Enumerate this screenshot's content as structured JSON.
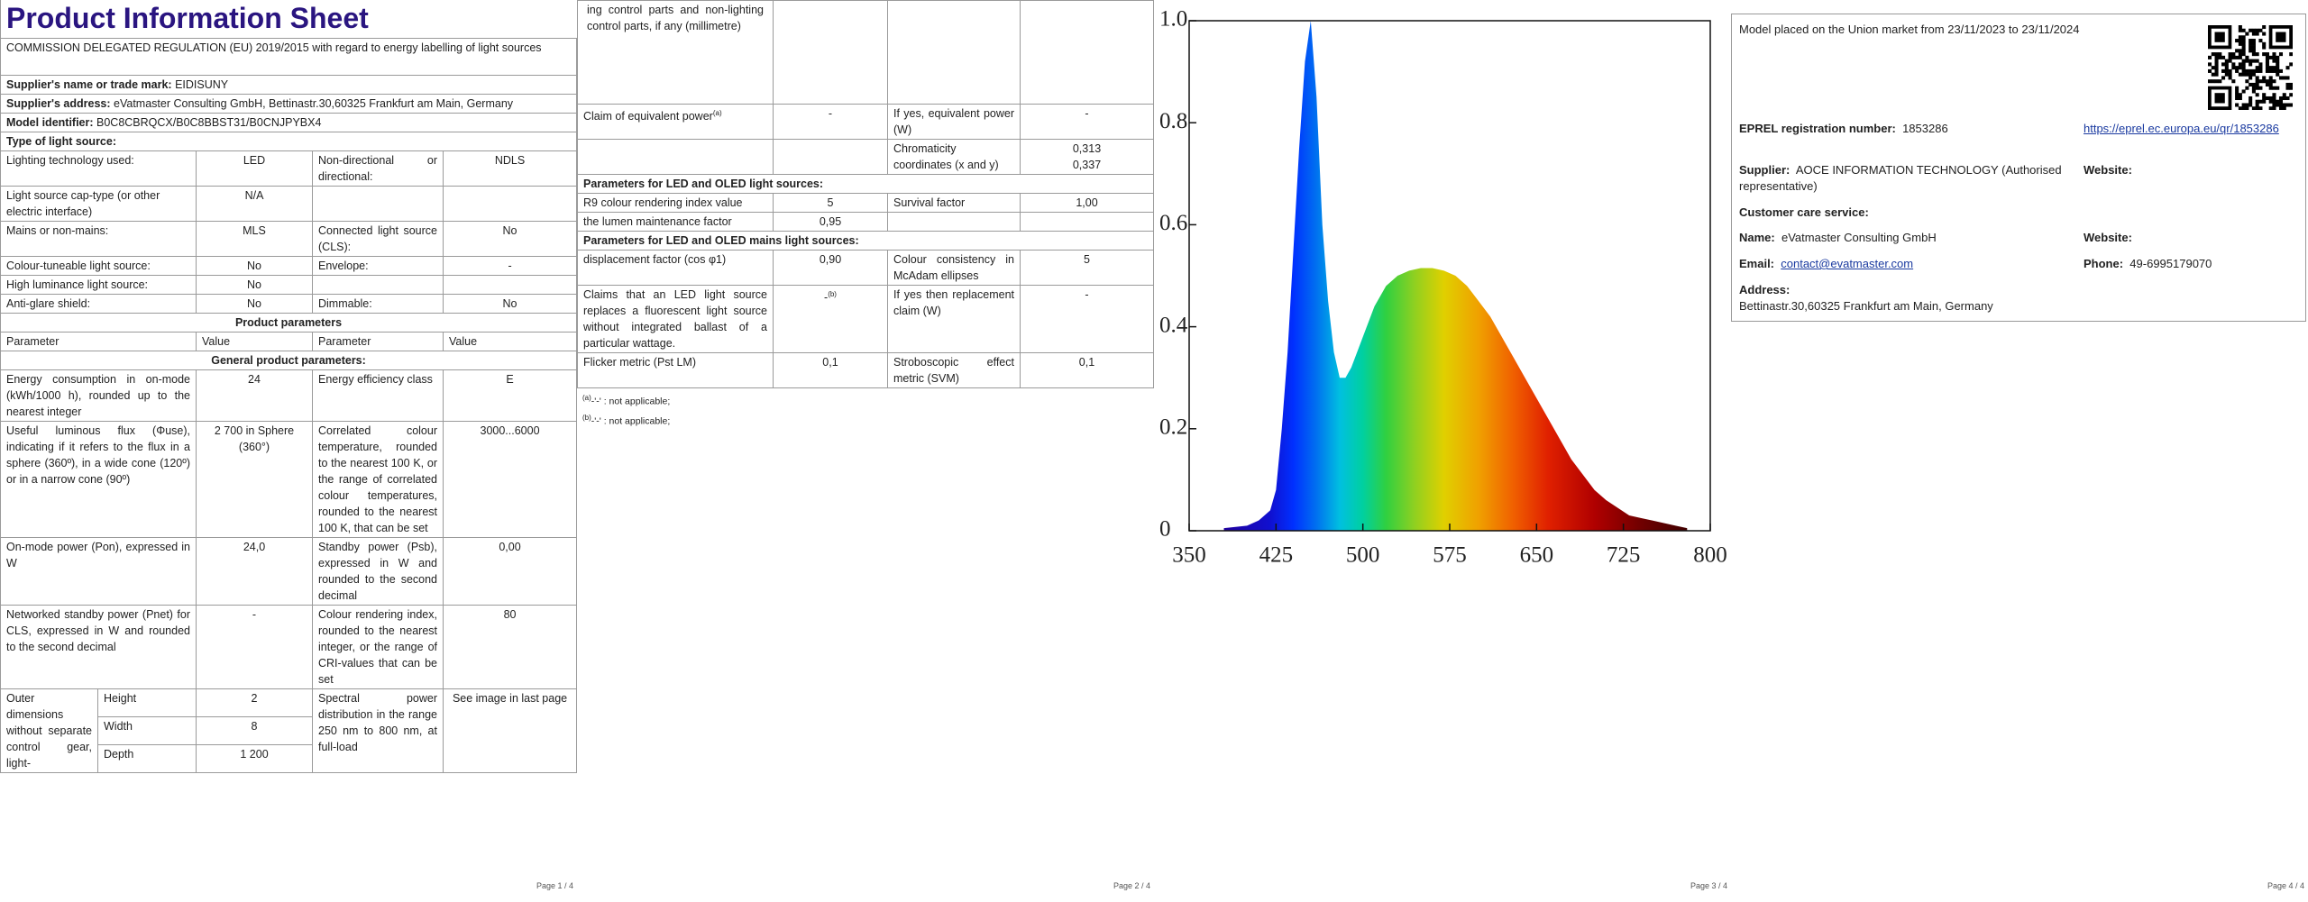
{
  "page1": {
    "title": "Product Information Sheet",
    "regulation": "COMMISSION DELEGATED REGULATION (EU) 2019/2015 with regard to energy labelling of light sources",
    "supplier_name": {
      "label": "Supplier's name or trade mark:",
      "value": "EIDISUNY"
    },
    "supplier_address": {
      "label": "Supplier's address:",
      "value": "eVatmaster Consulting GmbH, Bettinastr.30,60325 Frankfurt am Main, Germany"
    },
    "model": {
      "label": "Model identifier:",
      "value": "B0C8CBRQCX/B0C8BBST31/B0CNJPYBX4"
    },
    "type_heading": "Type of light source:",
    "type_rows": [
      [
        "Lighting technology used:",
        "LED",
        "Non-directional or directional:",
        "NDLS"
      ],
      [
        "Light source cap-type (or other electric interface)",
        "N/A"
      ],
      [
        "Mains or non-mains:",
        "MLS",
        "Connected light source (CLS):",
        "No"
      ],
      [
        "Colour-tuneable light source:",
        "No",
        "Envelope:",
        "-"
      ],
      [
        "High luminance light source:",
        "No"
      ],
      [
        "Anti-glare shield:",
        "No",
        "Dimmable:",
        "No"
      ]
    ],
    "product_parameters": "Product parameters",
    "columns": [
      "Parameter",
      "Value",
      "Parameter",
      "Value"
    ],
    "general_heading": "General product parameters:",
    "general_rows": [
      [
        "Energy consumption in on-mode (kWh/1000 h), rounded up to the nearest integer",
        "24",
        "Energy efficiency class",
        "E"
      ],
      [
        "Useful luminous flux (Φuse), indicating if it refers to the flux in a sphere (360º), in a wide cone (120º) or in a narrow cone (90º)",
        "2 700 in Sphere (360°)",
        "Correlated colour temperature, rounded to the nearest 100 K, or the range of correlated colour temperatures, rounded to the nearest 100 K, that can be set",
        "3000...6000"
      ],
      [
        "On-mode power (Pon), expressed in W",
        "24,0",
        "Standby power (Psb), expressed in W and rounded to the second decimal",
        "0,00"
      ],
      [
        "Networked standby power (Pnet) for CLS, expressed in W and rounded to the second decimal",
        "-",
        "Colour rendering index, rounded to the nearest integer, or the range of CRI-values that can be set",
        "80"
      ]
    ],
    "dimensions": {
      "label": "Outer dimensions without separate control gear, light-",
      "rows": [
        [
          "Height",
          "2"
        ],
        [
          "Width",
          "8"
        ],
        [
          "Depth",
          "1 200"
        ]
      ]
    },
    "spectral": {
      "label": "Spectral power distribution in the range 250 nm to 800 nm, at full-load",
      "value": "See image in last page"
    },
    "footer": "Page 1 / 4"
  },
  "page2": {
    "dimensions_continued": "ing control parts and non-lighting control parts, if any (millimetre)",
    "equivalent_power": {
      "label": "Claim of equivalent power",
      "ref": "(a)",
      "value": "-",
      "label2": "If yes, equivalent power (W)",
      "value2": "-"
    },
    "chromaticity": {
      "label": "Chromaticity coordinates (x and y)",
      "x": "0,313",
      "y": "0,337"
    },
    "led_heading": "Parameters for LED and OLED light sources:",
    "led_rows": [
      [
        "R9 colour rendering index value",
        "5",
        "Survival factor",
        "1,00"
      ],
      [
        "the lumen maintenance factor",
        "0,95"
      ]
    ],
    "mains_heading": "Parameters for LED and OLED mains light sources:",
    "mains_rows": [
      [
        "displacement factor (cos φ1)",
        "0,90",
        "Colour consistency in McAdam ellipses",
        "5"
      ]
    ],
    "fluorescent": {
      "label": "Claims that an LED light source replaces a fluorescent light source without integrated ballast of a particular wattage.",
      "value": "-",
      "ref": "(b)",
      "label2": "If yes then replacement claim (W)",
      "value2": "-"
    },
    "flicker": [
      "Flicker metric (Pst LM)",
      "0,1",
      "Stroboscopic effect metric (SVM)",
      "0,1"
    ],
    "notes": [
      {
        "ref": "(a)",
        "text": "-'-' : not applicable;"
      },
      {
        "ref": "(b)",
        "text": "-'-' : not applicable;"
      }
    ],
    "footer": "Page 2 / 4"
  },
  "chart_data": {
    "type": "area",
    "x": [
      380,
      400,
      410,
      420,
      425,
      430,
      435,
      440,
      445,
      450,
      455,
      460,
      465,
      470,
      475,
      480,
      485,
      490,
      500,
      510,
      520,
      530,
      540,
      550,
      560,
      570,
      580,
      590,
      600,
      610,
      620,
      630,
      640,
      650,
      660,
      670,
      680,
      690,
      700,
      710,
      720,
      730,
      740,
      750,
      760,
      770,
      780
    ],
    "values": [
      0.005,
      0.01,
      0.02,
      0.04,
      0.08,
      0.2,
      0.35,
      0.55,
      0.75,
      0.92,
      1.0,
      0.85,
      0.6,
      0.45,
      0.35,
      0.3,
      0.3,
      0.32,
      0.38,
      0.44,
      0.48,
      0.5,
      0.51,
      0.515,
      0.515,
      0.51,
      0.5,
      0.48,
      0.45,
      0.42,
      0.38,
      0.34,
      0.3,
      0.26,
      0.22,
      0.18,
      0.14,
      0.11,
      0.08,
      0.06,
      0.045,
      0.03,
      0.025,
      0.02,
      0.015,
      0.01,
      0.005
    ],
    "xlim": [
      350,
      800
    ],
    "ylim": [
      0,
      1
    ],
    "xticks": [
      350,
      425,
      500,
      575,
      650,
      725,
      800
    ],
    "yticks": [
      0,
      0.2,
      0.4,
      0.6,
      0.8,
      {
        "value": 1,
        "label": "1.0"
      }
    ]
  },
  "page3": {
    "footer": "Page 3 / 4"
  },
  "page4": {
    "placed": "Model placed on the Union market from 23/11/2023 to 23/11/2024",
    "eprel": {
      "label": "EPREL registration number:",
      "value": "1853286",
      "link": "https://eprel.ec.europa.eu/qr/1853286"
    },
    "supplier": {
      "label": "Supplier:",
      "value": "AOCE INFORMATION TECHNOLOGY (Authorised representative)",
      "website": "Website:"
    },
    "customer_care": "Customer care service:",
    "name": {
      "label": "Name:",
      "value": "eVatmaster Consulting GmbH",
      "website": "Website:"
    },
    "email": {
      "label": "Email:",
      "value": "contact@evatmaster.com",
      "phone_label": "Phone:",
      "phone": "49-6995179070"
    },
    "address": {
      "label": "Address:",
      "value": "Bettinastr.30,60325 Frankfurt am Main, Germany"
    },
    "footer": "Page 4 / 4"
  }
}
